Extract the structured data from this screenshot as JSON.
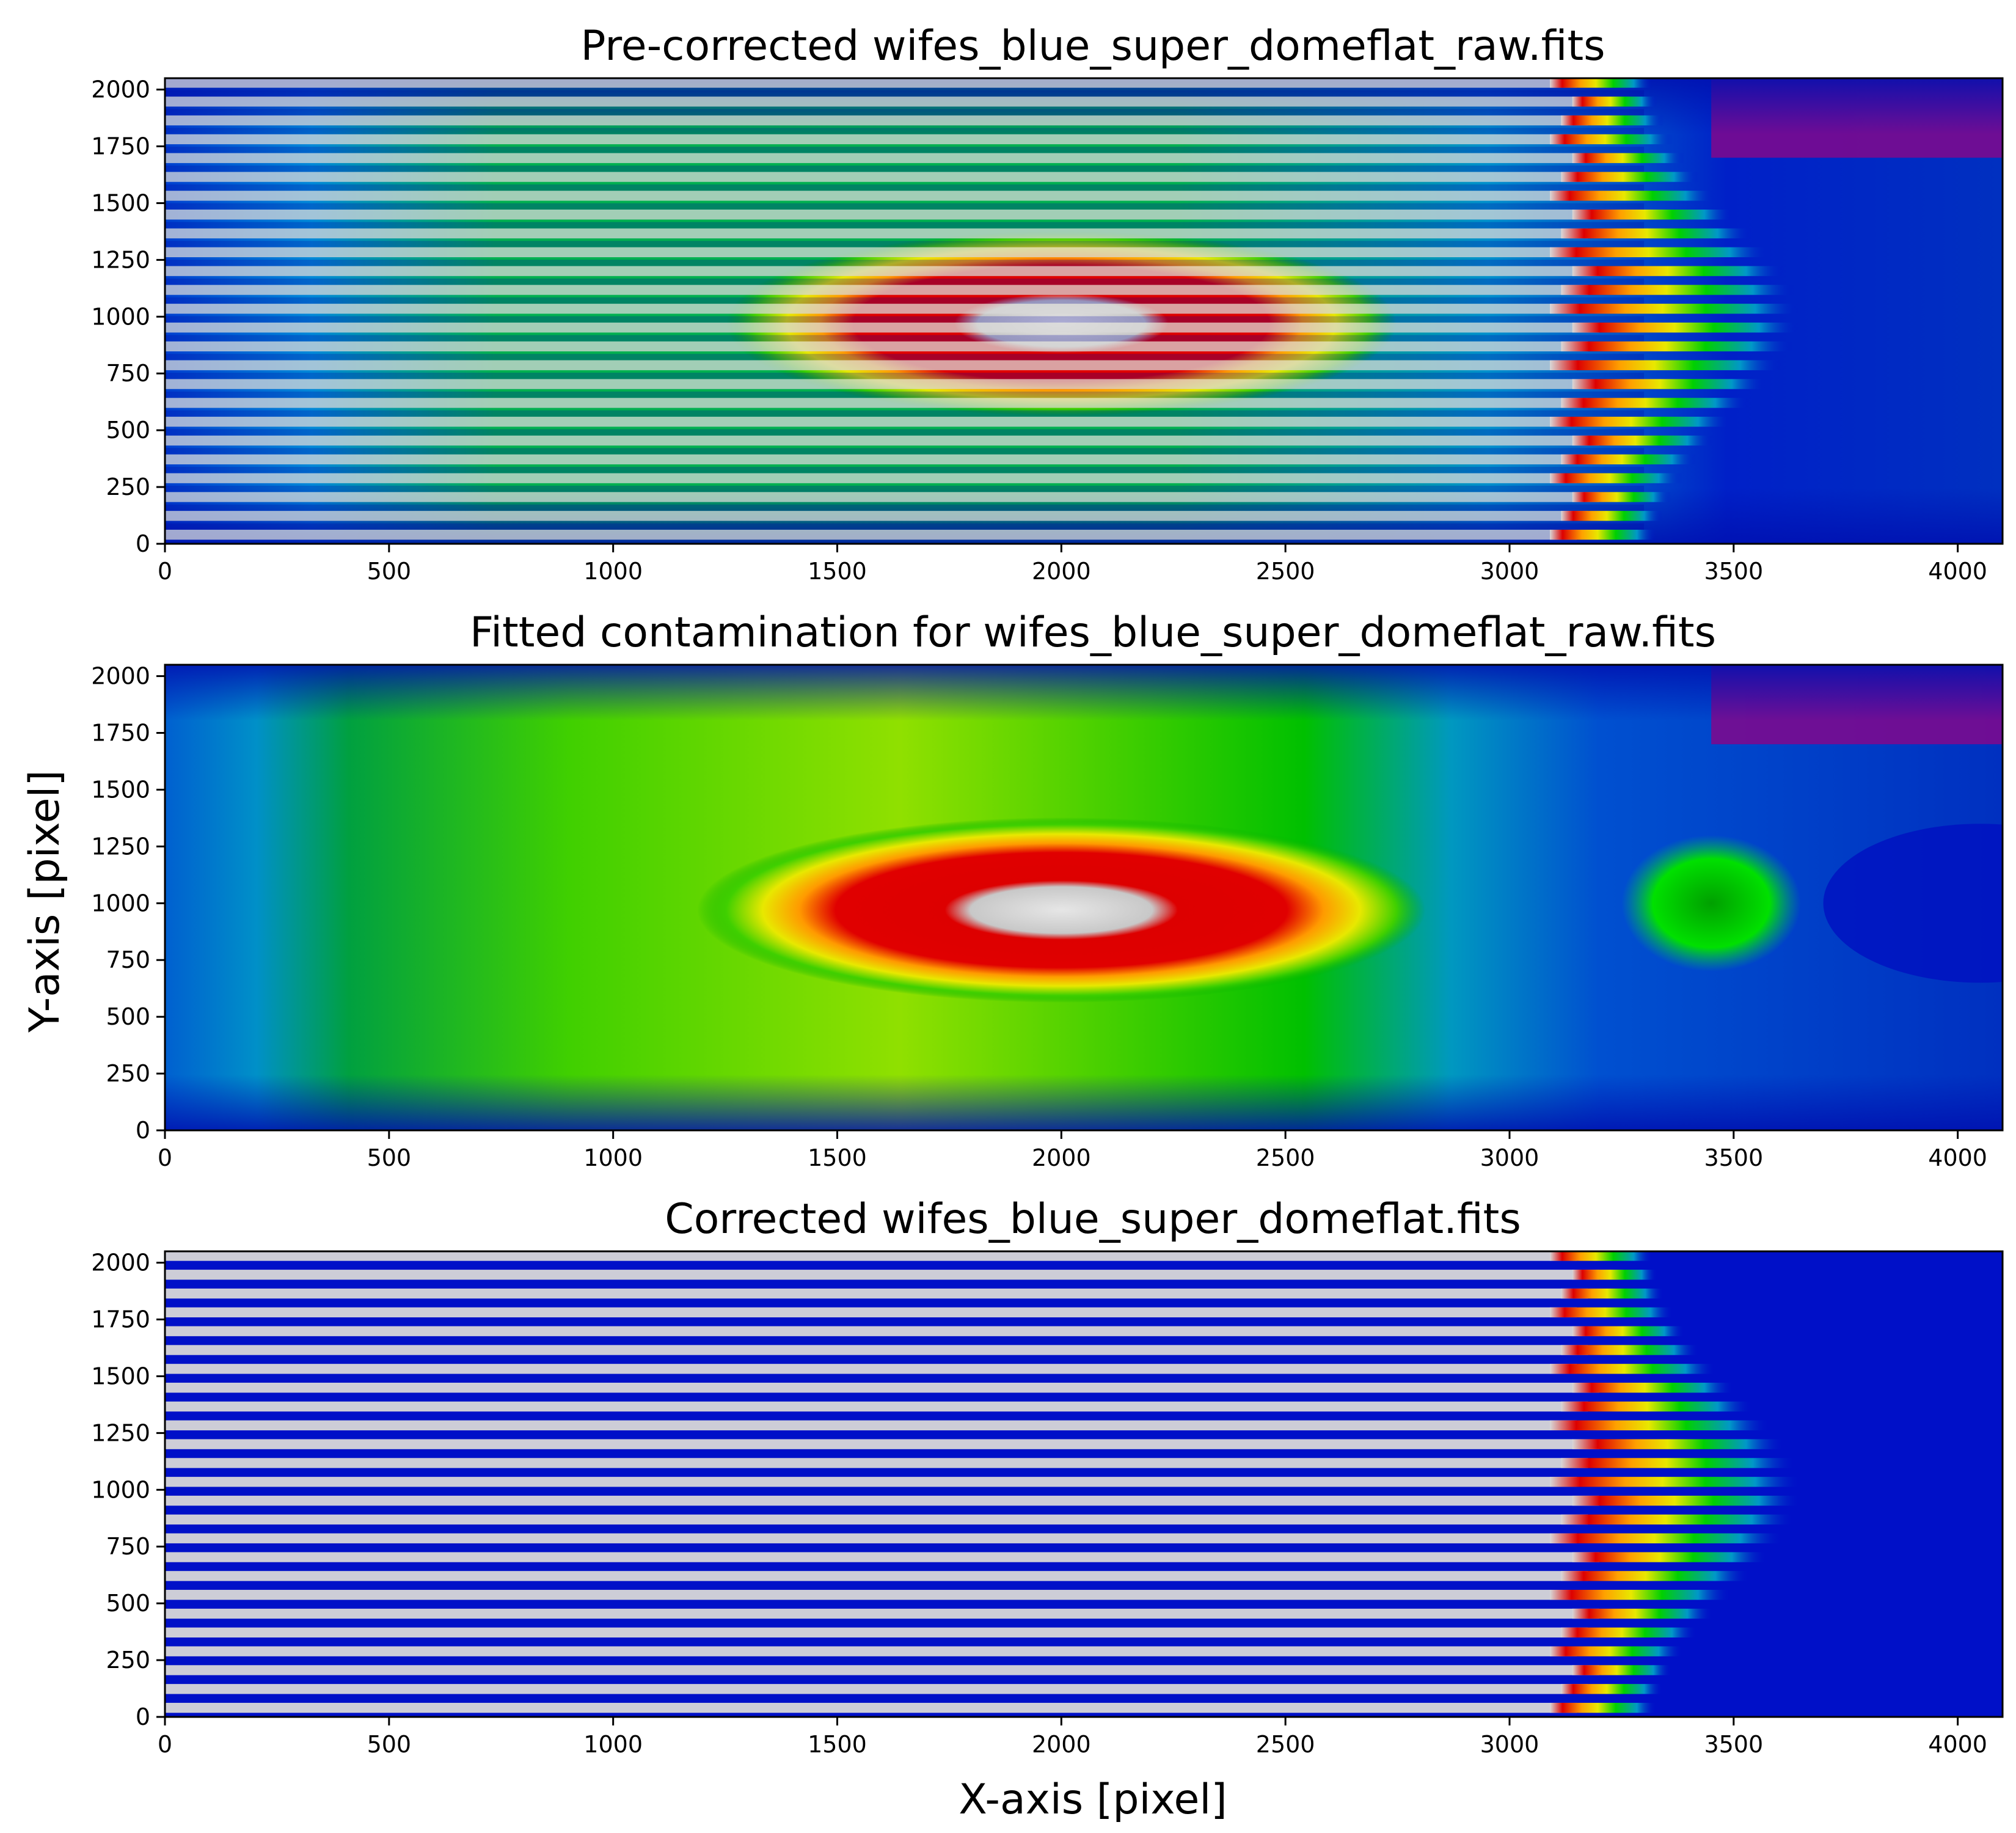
{
  "chart_data": [
    {
      "type": "heatmap",
      "title": "Pre-corrected wifes_blue_super_domeflat_raw.fits",
      "xlabel": "",
      "ylabel": "",
      "xlim": [
        0,
        4100
      ],
      "ylim": [
        0,
        2050
      ],
      "xticks": [
        "0",
        "500",
        "1000",
        "1500",
        "2000",
        "2500",
        "3000",
        "3500",
        "4000"
      ],
      "yticks": [
        "0",
        "250",
        "500",
        "750",
        "1000",
        "1250",
        "1500",
        "1750",
        "2000"
      ],
      "colormap": "nipy_spectral",
      "pattern": "horizontal spectral stripes (slitlet traces) ending near x≈3150–3500, over a smooth background",
      "hotspot": {
        "x": 2000,
        "y": 970,
        "rx": 650,
        "ry": 240
      }
    },
    {
      "type": "heatmap",
      "title": "Fitted contamination for wifes_blue_super_domeflat_raw.fits",
      "xlabel": "",
      "ylabel": "Y-axis [pixel]",
      "xlim": [
        0,
        4100
      ],
      "ylim": [
        0,
        2050
      ],
      "xticks": [
        "0",
        "500",
        "1000",
        "1500",
        "2000",
        "2500",
        "3000",
        "3500",
        "4000"
      ],
      "yticks": [
        "0",
        "250",
        "500",
        "750",
        "1000",
        "1250",
        "1500",
        "1750",
        "2000"
      ],
      "colormap": "nipy_spectral",
      "pattern": "smooth background: broad green region x≈300–2900, red core centered (2000, 970), secondary lobe near (3450, 1000)",
      "hotspot": {
        "x": 2000,
        "y": 970,
        "rx": 650,
        "ry": 240
      }
    },
    {
      "type": "heatmap",
      "title": "Corrected wifes_blue_super_domeflat.fits",
      "xlabel": "X-axis [pixel]",
      "ylabel": "",
      "xlim": [
        0,
        4100
      ],
      "ylim": [
        0,
        2050
      ],
      "xticks": [
        "0",
        "500",
        "1000",
        "1500",
        "2000",
        "2500",
        "3000",
        "3500",
        "4000"
      ],
      "yticks": [
        "0",
        "250",
        "500",
        "750",
        "1000",
        "1250",
        "1500",
        "1750",
        "2000"
      ],
      "colormap": "nipy_spectral",
      "pattern": "white/grey stripes on dark-blue background, colored fringe (red/yellow/green) at x≈3150–3500"
    }
  ],
  "colors": {
    "purple": "#7a0a8f",
    "dark_blue": "#0010c8",
    "blue": "#0070dd",
    "cyan_blue": "#0098c8",
    "green": "#00a000",
    "bright_green": "#00e000",
    "yellow": "#e8e800",
    "orange": "#ffa000",
    "red": "#dd0000",
    "white_grey": "#d8d8d8"
  }
}
